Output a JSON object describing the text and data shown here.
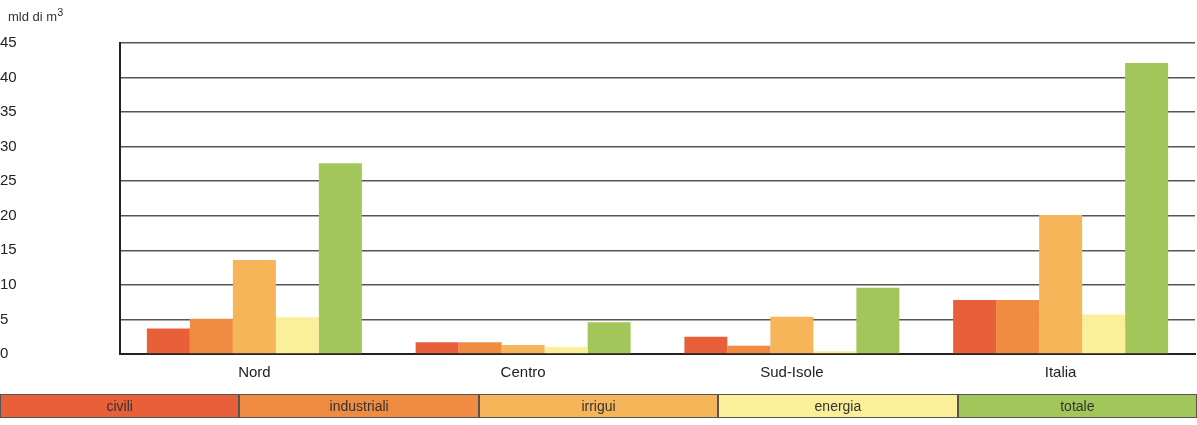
{
  "chart_data": {
    "type": "bar",
    "ylabel": "mld di m$^{3}$",
    "categories": [
      "Nord",
      "Centro",
      "Sud-Isole",
      "Italia"
    ],
    "series": [
      {
        "name": "civili",
        "color": "#e8603a",
        "values": [
          3.7,
          1.7,
          2.5,
          7.8
        ]
      },
      {
        "name": "industriali",
        "color": "#f08c42",
        "values": [
          5.1,
          1.7,
          1.2,
          7.8
        ]
      },
      {
        "name": "irrigui",
        "color": "#f7b55a",
        "values": [
          13.6,
          1.3,
          5.4,
          20.1
        ]
      },
      {
        "name": "energia",
        "color": "#fbef9a",
        "values": [
          5.3,
          1.0,
          0.4,
          5.7
        ]
      },
      {
        "name": "totale",
        "color": "#a3c65a",
        "values": [
          27.6,
          4.6,
          9.6,
          42.1
        ]
      }
    ],
    "ylim": [
      0,
      45
    ],
    "yticks": [
      0,
      5,
      10,
      15,
      20,
      25,
      30,
      35,
      40,
      45
    ],
    "grid": "y",
    "legend": "bottom"
  }
}
